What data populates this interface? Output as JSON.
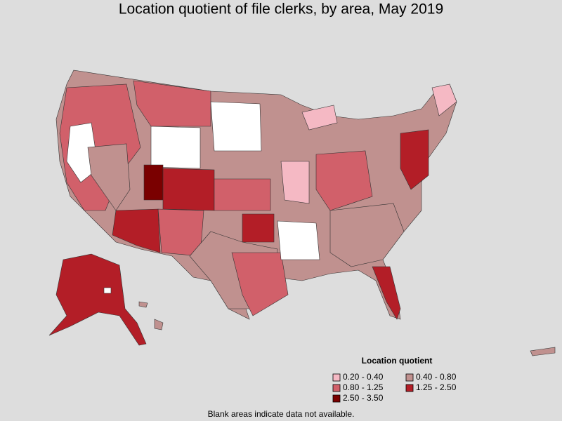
{
  "title": "Location quotient of file clerks, by area, May 2019",
  "legend": {
    "title": "Location quotient",
    "items": [
      {
        "label": "0.20 - 0.40",
        "color": "#f5b9c4"
      },
      {
        "label": "0.40 - 0.80",
        "color": "#c0918f"
      },
      {
        "label": "0.80 - 1.25",
        "color": "#d1606a"
      },
      {
        "label": "1.25 - 2.50",
        "color": "#b31e27"
      },
      {
        "label": "2.50 - 3.50",
        "color": "#7a0000"
      }
    ]
  },
  "footnote": "Blank areas indicate data not available."
}
